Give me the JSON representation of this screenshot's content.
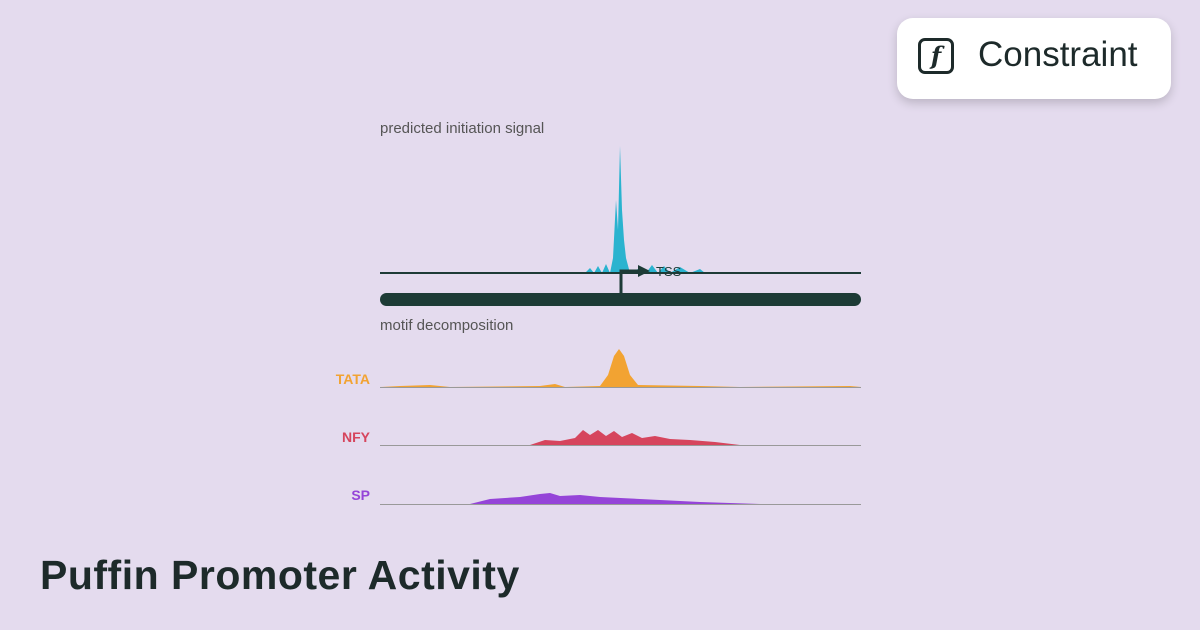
{
  "badge": {
    "label": "Constraint"
  },
  "figure": {
    "signal_label": "predicted initiation signal",
    "tss_label": "TSS",
    "motif_label": "motif decomposition",
    "motifs": [
      "TATA",
      "NFY",
      "SP"
    ]
  },
  "title": "Puffin Promoter Activity"
}
